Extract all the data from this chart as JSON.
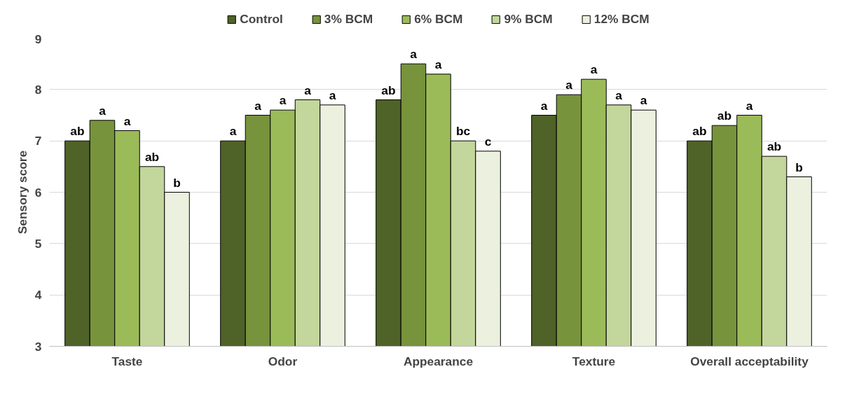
{
  "chart_data": {
    "type": "bar",
    "ylabel": "Sensory score",
    "categories": [
      "Taste",
      "Odor",
      "Appearance",
      "Texture",
      "Overall acceptability"
    ],
    "series": [
      {
        "name": "Control",
        "color": "#4f6228",
        "values": [
          7.0,
          7.0,
          7.8,
          7.5,
          7.0
        ],
        "value_labels": [
          "ab",
          "a",
          "ab",
          "a",
          "ab"
        ]
      },
      {
        "name": "3% BCM",
        "color": "#77933c",
        "values": [
          7.4,
          7.5,
          8.5,
          7.9,
          7.3
        ],
        "value_labels": [
          "a",
          "a",
          "a",
          "a",
          "ab"
        ]
      },
      {
        "name": "6% BCM",
        "color": "#9bbb59",
        "values": [
          7.2,
          7.6,
          8.3,
          8.2,
          7.5
        ],
        "value_labels": [
          "a",
          "a",
          "a",
          "a",
          "a"
        ]
      },
      {
        "name": "9% BCM",
        "color": "#c3d69b",
        "values": [
          6.5,
          7.8,
          7.0,
          7.7,
          6.7
        ],
        "value_labels": [
          "ab",
          "a",
          "bc",
          "a",
          "ab"
        ]
      },
      {
        "name": "12% BCM",
        "color": "#ebf1de",
        "values": [
          6.0,
          7.7,
          6.8,
          7.6,
          6.3
        ],
        "value_labels": [
          "b",
          "a",
          "c",
          "a",
          "b"
        ]
      }
    ],
    "ylim": [
      3,
      9
    ],
    "yticks": [
      3,
      4,
      5,
      6,
      7,
      8,
      9
    ],
    "grid": "y",
    "legend": "top"
  }
}
